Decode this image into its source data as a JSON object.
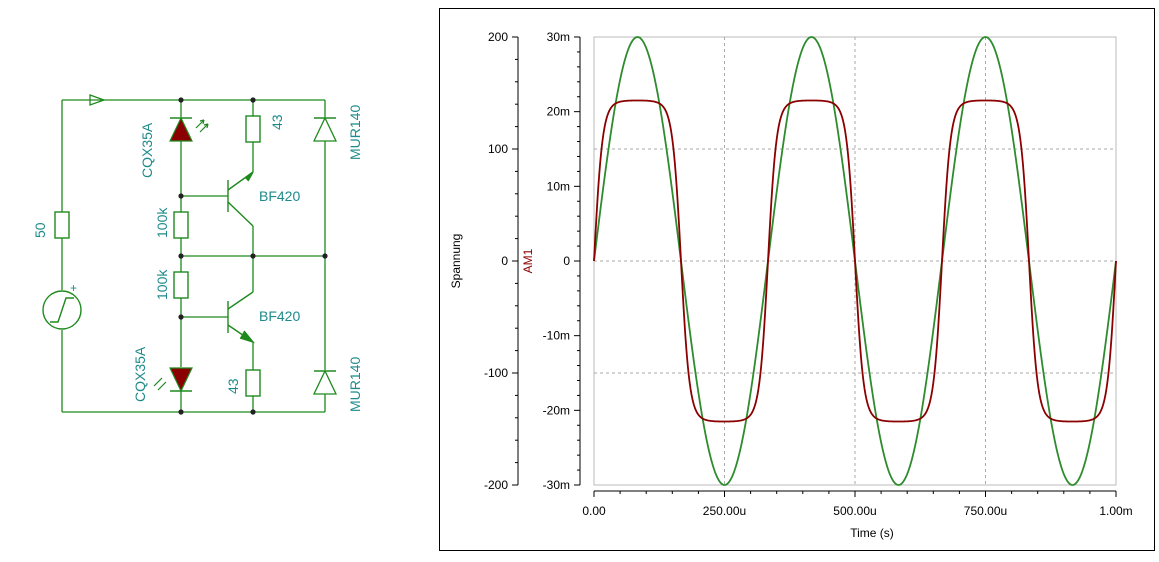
{
  "schematic": {
    "colors": {
      "wire": "#1e8a1e",
      "label": "#1e8a8a",
      "led_fill": "#8b0000"
    },
    "source_resistor": "50",
    "source_polarity": "+",
    "led_top": "CQX35A",
    "led_bottom": "CQX35A",
    "r_top": "100k",
    "r_bottom": "100k",
    "r_emitter_top": "43",
    "r_emitter_bottom": "43",
    "transistor_top": "BF420",
    "transistor_bottom": "BF420",
    "diode_top": "MUR140",
    "diode_bottom": "MUR140"
  },
  "chart_data": {
    "type": "line",
    "xlabel": "Time (s)",
    "ylabel_left": "Spannung",
    "ylabel_right": "AM1",
    "xlim": [
      0,
      0.001
    ],
    "x_ticks": [
      "0.00",
      "250.00u",
      "500.00u",
      "750.00u",
      "1.00m"
    ],
    "y_left_ticks": [
      "200",
      "100",
      "0",
      "-100",
      "-200"
    ],
    "y_left_lim": [
      -200,
      200
    ],
    "y_right_ticks": [
      "30m",
      "20m",
      "10m",
      "0",
      "-10m",
      "-20m",
      "-30m"
    ],
    "y_right_lim": [
      -0.03,
      0.03
    ],
    "grid": true,
    "series": [
      {
        "axis": "left",
        "color": "#2e8b2e",
        "shape": "sine",
        "frequency_hz": 3000,
        "amplitude": 200,
        "offset": 0
      },
      {
        "axis": "right",
        "color": "#8b0000",
        "shape": "clipped-sine",
        "frequency_hz": 3000,
        "amplitude": 0.0215,
        "offset": 0
      }
    ]
  }
}
